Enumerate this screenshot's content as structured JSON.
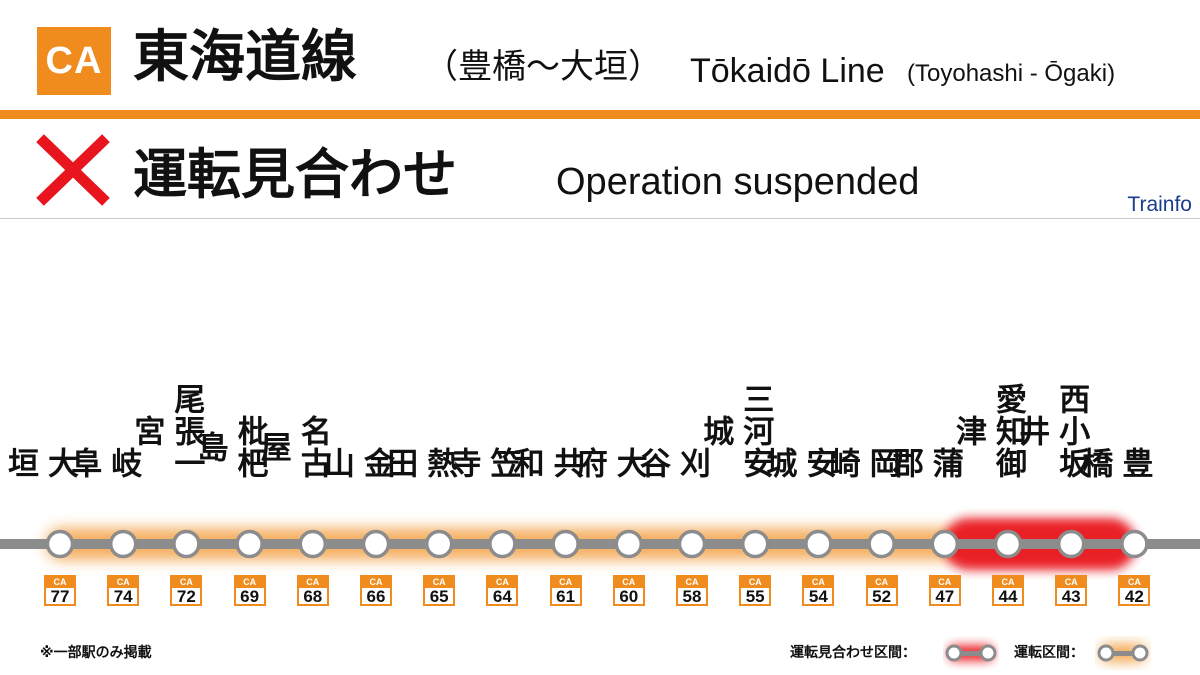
{
  "header": {
    "line_code": "CA",
    "line_name_jp": "東海道線",
    "line_section_jp": "（豊橋〜大垣）",
    "line_name_en": "Tōkaidō Line",
    "line_section_en": "(Toyohashi - Ōgaki)"
  },
  "status": {
    "icon": "cross-icon",
    "text_jp": "運転見合わせ",
    "text_en": "Operation suspended"
  },
  "brand": "Trainfo",
  "colors": {
    "line": "#f08c1e",
    "suspended": "#e8141e",
    "track": "#8c8c8c",
    "status_icon": "#e8141e",
    "brand": "#1a3c8c"
  },
  "stations": [
    {
      "name": "大垣",
      "code": "77"
    },
    {
      "name": "岐阜",
      "code": "74"
    },
    {
      "name": "尾張一宮",
      "code": "72"
    },
    {
      "name": "枇杷島",
      "code": "69"
    },
    {
      "name": "名古屋",
      "code": "68"
    },
    {
      "name": "金山",
      "code": "66"
    },
    {
      "name": "熱田",
      "code": "65"
    },
    {
      "name": "笠寺",
      "code": "64"
    },
    {
      "name": "共和",
      "code": "61"
    },
    {
      "name": "大府",
      "code": "60"
    },
    {
      "name": "刈谷",
      "code": "58"
    },
    {
      "name": "三河安城",
      "code": "55"
    },
    {
      "name": "安城",
      "code": "54"
    },
    {
      "name": "岡崎",
      "code": "52"
    },
    {
      "name": "蒲郡",
      "code": "47"
    },
    {
      "name": "愛知御津",
      "code": "44"
    },
    {
      "name": "西小坂井",
      "code": "43"
    },
    {
      "name": "豊橋",
      "code": "42"
    }
  ],
  "operating_section": {
    "from": "大垣",
    "to": "蒲郡"
  },
  "suspended_section": {
    "from": "蒲郡",
    "to": "豊橋"
  },
  "footnote": "※一部駅のみ掲載",
  "legend": {
    "suspended_label": "運転見合わせ区間：",
    "operating_label": "運転区間："
  }
}
